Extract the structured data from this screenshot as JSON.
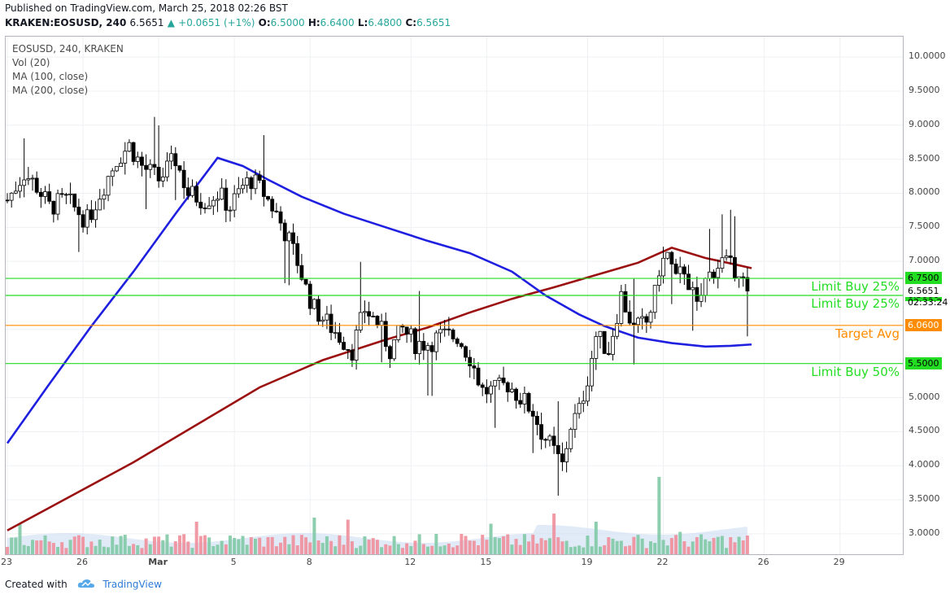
{
  "header": {
    "published": "Published on TradingView.com, March 25, 2018 02:26 BST",
    "symbol": "KRAKEN:EOSUSD, 240",
    "last": "6.5651",
    "change": "+0.0651 (+1%)",
    "open_label": "O:",
    "open": "6.5000",
    "high_label": "H:",
    "high": "6.6400",
    "low_label": "L:",
    "low": "6.4800",
    "close_label": "C:",
    "close": "6.5651"
  },
  "legend": {
    "title": "EOSUSD, 240, KRAKEN",
    "vol": "Vol (20)",
    "ma100": "MA (100, close)",
    "ma200": "MA (200, close)"
  },
  "footer": {
    "created_with": "Created with",
    "brand": "TradingView",
    "icon": "tradingview-cloud-icon"
  },
  "countdown": "02:33:24",
  "colors": {
    "up": "#ffffff",
    "down": "#000000",
    "vol_up": "#7fc9a5",
    "vol_down": "#ef8f9b",
    "ma100": "#1f1fe0",
    "ma200": "#9b1010",
    "limit": "#22dd22",
    "target": "#ff8c00"
  },
  "levels": [
    {
      "price": 6.75,
      "tag": "6.7500",
      "label": "Limit Buy 25%",
      "color": "#22dd22"
    },
    {
      "price": 6.5,
      "tag": "6.5000",
      "label": "Limit Buy 25%",
      "color": "#22dd22"
    },
    {
      "price": 6.06,
      "tag": "6.0600",
      "label": "Target Avg",
      "color": "#ff8c00"
    },
    {
      "price": 5.5,
      "tag": "5.5000",
      "label": "Limit Buy 50%",
      "color": "#22dd22"
    }
  ],
  "chart_data": {
    "type": "candlestick",
    "y_ticks": [
      "10.0000",
      "9.5000",
      "9.0000",
      "8.5000",
      "8.0000",
      "7.5000",
      "7.0000",
      "6.5000",
      "6.0000",
      "5.5000",
      "5.0000",
      "4.5000",
      "4.0000",
      "3.5000",
      "3.0000"
    ],
    "ylim": [
      2.7,
      10.3
    ],
    "x_ticks": [
      {
        "label": "23",
        "pos": 0
      },
      {
        "label": "26",
        "pos": 18
      },
      {
        "label": "Mar",
        "pos": 36
      },
      {
        "label": "5",
        "pos": 54
      },
      {
        "label": "8",
        "pos": 72
      },
      {
        "label": "12",
        "pos": 96
      },
      {
        "label": "15",
        "pos": 114
      },
      {
        "label": "19",
        "pos": 138
      },
      {
        "label": "22",
        "pos": 156
      },
      {
        "label": "26",
        "pos": 180
      },
      {
        "label": "29",
        "pos": 198
      }
    ],
    "last_price": 6.5651,
    "close_anchors": [
      [
        0,
        7.9
      ],
      [
        4,
        8.3
      ],
      [
        7,
        8.1
      ],
      [
        10,
        7.8
      ],
      [
        14,
        7.9
      ],
      [
        19,
        7.6
      ],
      [
        22,
        8.0
      ],
      [
        26,
        8.5
      ],
      [
        29,
        8.7
      ],
      [
        32,
        8.4
      ],
      [
        36,
        8.2
      ],
      [
        40,
        8.5
      ],
      [
        43,
        8.0
      ],
      [
        47,
        7.9
      ],
      [
        50,
        8.0
      ],
      [
        53,
        7.8
      ],
      [
        56,
        8.1
      ],
      [
        58,
        8.2
      ],
      [
        61,
        8.0
      ],
      [
        64,
        7.7
      ],
      [
        67,
        7.3
      ],
      [
        69,
        7.0
      ],
      [
        71,
        6.6
      ],
      [
        73,
        6.3
      ],
      [
        76,
        6.1
      ],
      [
        79,
        5.9
      ],
      [
        82,
        5.7
      ],
      [
        85,
        6.3
      ],
      [
        88,
        6.1
      ],
      [
        91,
        5.7
      ],
      [
        94,
        6.0
      ],
      [
        97,
        5.8
      ],
      [
        100,
        5.8
      ],
      [
        103,
        5.9
      ],
      [
        107,
        5.9
      ],
      [
        110,
        5.6
      ],
      [
        113,
        5.1
      ],
      [
        116,
        5.1
      ],
      [
        119,
        5.2
      ],
      [
        122,
        5.0
      ],
      [
        125,
        4.8
      ],
      [
        127,
        4.5
      ],
      [
        130,
        4.2
      ],
      [
        132,
        4.0
      ],
      [
        134,
        4.6
      ],
      [
        136,
        4.8
      ],
      [
        138,
        5.3
      ],
      [
        140,
        5.9
      ],
      [
        143,
        5.7
      ],
      [
        146,
        6.5
      ],
      [
        149,
        6.0
      ],
      [
        152,
        6.1
      ],
      [
        154,
        6.5
      ],
      [
        155,
        6.9
      ],
      [
        157,
        7.1
      ],
      [
        159,
        6.7
      ],
      [
        161,
        6.9
      ],
      [
        164,
        6.3
      ],
      [
        166,
        6.7
      ],
      [
        168,
        6.9
      ],
      [
        170,
        7.0
      ],
      [
        172,
        6.9
      ],
      [
        174,
        6.9
      ],
      [
        176,
        6.5
      ],
      [
        176.5,
        6.5651
      ]
    ],
    "ma100": [
      [
        0,
        4.33
      ],
      [
        10,
        5.2
      ],
      [
        20,
        6.05
      ],
      [
        30,
        6.85
      ],
      [
        40,
        7.7
      ],
      [
        50,
        8.52
      ],
      [
        56,
        8.4
      ],
      [
        62,
        8.2
      ],
      [
        70,
        7.95
      ],
      [
        80,
        7.7
      ],
      [
        90,
        7.5
      ],
      [
        100,
        7.3
      ],
      [
        110,
        7.12
      ],
      [
        120,
        6.85
      ],
      [
        128,
        6.5
      ],
      [
        136,
        6.22
      ],
      [
        142,
        6.05
      ],
      [
        150,
        5.88
      ],
      [
        158,
        5.8
      ],
      [
        166,
        5.75
      ],
      [
        172,
        5.76
      ],
      [
        177,
        5.78
      ]
    ],
    "ma200": [
      [
        0,
        3.05
      ],
      [
        15,
        3.55
      ],
      [
        30,
        4.05
      ],
      [
        45,
        4.6
      ],
      [
        60,
        5.15
      ],
      [
        75,
        5.55
      ],
      [
        90,
        5.85
      ],
      [
        100,
        6.03
      ],
      [
        110,
        6.25
      ],
      [
        120,
        6.45
      ],
      [
        130,
        6.62
      ],
      [
        140,
        6.8
      ],
      [
        150,
        6.98
      ],
      [
        158,
        7.2
      ],
      [
        166,
        7.05
      ],
      [
        172,
        6.97
      ],
      [
        177,
        6.9
      ]
    ],
    "volume_spikes": [
      [
        3,
        0.75
      ],
      [
        27,
        0.45
      ],
      [
        45,
        0.8
      ],
      [
        56,
        0.45
      ],
      [
        73,
        0.9
      ],
      [
        81,
        0.85
      ],
      [
        102,
        0.5
      ],
      [
        108,
        0.5
      ],
      [
        115,
        0.75
      ],
      [
        130,
        1.0
      ],
      [
        140,
        0.8
      ],
      [
        155,
        1.9
      ],
      [
        160,
        0.55
      ],
      [
        170,
        0.45
      ]
    ]
  }
}
